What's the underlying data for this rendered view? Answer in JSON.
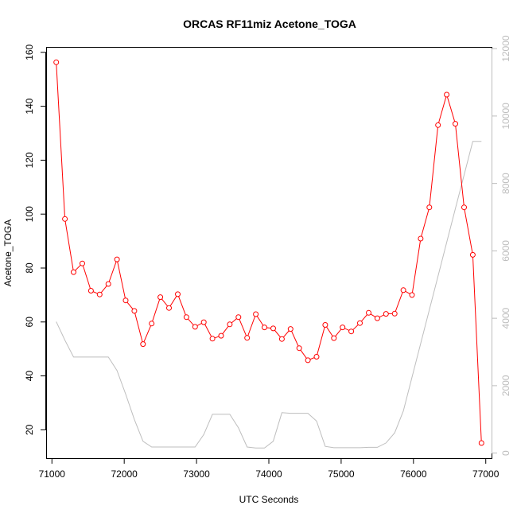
{
  "chart_data": {
    "type": "line",
    "title": "ORCAS RF11miz Acetone_TOGA",
    "xlabel": "UTC Seconds",
    "ylabel": "Acetone_TOGA",
    "xlim": [
      70920,
      77080
    ],
    "ylim": [
      9.5,
      162
    ],
    "y2lim": [
      -150,
      12050
    ],
    "x_ticks": [
      71000,
      72000,
      73000,
      74000,
      75000,
      76000,
      77000
    ],
    "y_ticks": [
      20,
      40,
      60,
      80,
      100,
      120,
      140,
      160
    ],
    "y2_ticks": [
      0,
      2000,
      4000,
      6000,
      8000,
      10000,
      12000
    ],
    "colors": {
      "primary": "#ff0000",
      "secondary": "#bebebe",
      "axis": "#000000",
      "right_axis": "#bdbdbd"
    },
    "series": [
      {
        "axis": "left",
        "style": "line+open-circle",
        "color": "#ff0000",
        "x": [
          71060,
          71180,
          71300,
          71420,
          71540,
          71660,
          71780,
          71900,
          72020,
          72140,
          72260,
          72380,
          72500,
          72620,
          72740,
          72860,
          72980,
          73100,
          73220,
          73340,
          73460,
          73580,
          73700,
          73820,
          73940,
          74060,
          74180,
          74300,
          74420,
          74540,
          74660,
          74780,
          74900,
          75020,
          75140,
          75260,
          75380,
          75500,
          75620,
          75740,
          75860,
          75980,
          76100,
          76220,
          76340,
          76460,
          76580,
          76700,
          76820,
          76940
        ],
        "y": [
          156.3,
          98.2,
          78.5,
          81.7,
          71.6,
          70.2,
          74.1,
          83.2,
          68.0,
          64.1,
          51.8,
          59.4,
          69.2,
          65.2,
          70.3,
          61.8,
          58.2,
          59.9,
          53.8,
          54.9,
          59.1,
          61.8,
          54.1,
          62.9,
          58.0,
          57.6,
          53.7,
          57.4,
          50.3,
          45.8,
          47.1,
          58.9,
          54.0,
          58.0,
          56.5,
          59.6,
          63.4,
          61.4,
          63.0,
          63.1,
          71.8,
          70.0,
          90.9,
          102.5,
          133.0,
          144.3,
          133.5,
          102.5,
          84.9,
          15.1
        ]
      },
      {
        "axis": "right",
        "style": "line",
        "color": "#bebebe",
        "x": [
          71060,
          71180,
          71300,
          71420,
          71540,
          71660,
          71780,
          71900,
          72020,
          72140,
          72260,
          72380,
          72500,
          72620,
          72740,
          72860,
          72980,
          73100,
          73220,
          73340,
          73460,
          73580,
          73700,
          73820,
          73940,
          74060,
          74180,
          74300,
          74420,
          74540,
          74660,
          74780,
          74900,
          75020,
          75140,
          75260,
          75380,
          75500,
          75620,
          75740,
          75860,
          75980,
          76100,
          76220,
          76340,
          76460,
          76580,
          76700,
          76820,
          76940
        ],
        "y": [
          3900,
          3350,
          2850,
          2850,
          2850,
          2850,
          2850,
          2450,
          1750,
          1000,
          350,
          180,
          180,
          180,
          180,
          180,
          180,
          550,
          1150,
          1150,
          1150,
          750,
          180,
          150,
          150,
          350,
          1200,
          1180,
          1180,
          1180,
          950,
          200,
          160,
          160,
          160,
          160,
          170,
          170,
          300,
          600,
          1250,
          2250,
          3250,
          4250,
          5250,
          6250,
          7250,
          8250,
          9250,
          9250
        ]
      }
    ]
  }
}
